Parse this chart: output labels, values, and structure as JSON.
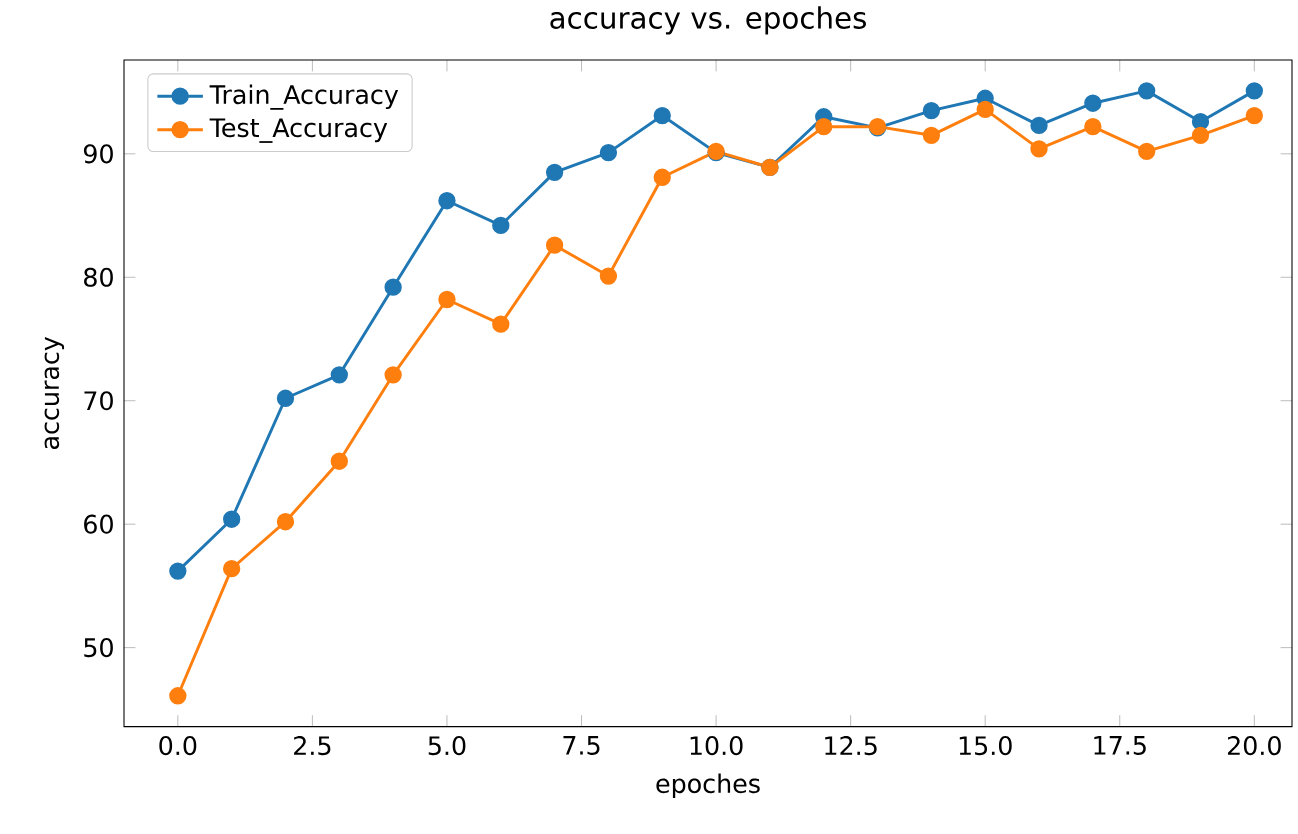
{
  "chart_data": {
    "type": "line",
    "title": "accuracy vs. epoches",
    "xlabel": "epoches",
    "ylabel": "accuracy",
    "x": [
      0,
      1,
      2,
      3,
      4,
      5,
      6,
      7,
      8,
      9,
      10,
      11,
      12,
      13,
      14,
      15,
      16,
      17,
      18,
      19,
      20
    ],
    "series": [
      {
        "name": "Train_Accuracy",
        "color": "#1f77b4",
        "values": [
          56.2,
          60.4,
          70.2,
          72.1,
          79.2,
          86.2,
          84.2,
          88.5,
          90.1,
          93.1,
          90.1,
          88.9,
          93.0,
          92.1,
          93.5,
          94.5,
          92.3,
          94.1,
          95.1,
          92.6,
          95.1
        ]
      },
      {
        "name": "Test_Accuracy",
        "color": "#ff7f0e",
        "values": [
          46.1,
          56.4,
          60.2,
          65.1,
          72.1,
          78.2,
          76.2,
          82.6,
          80.1,
          88.1,
          90.2,
          88.9,
          92.2,
          92.2,
          91.5,
          93.6,
          90.4,
          92.2,
          90.2,
          91.5,
          93.1
        ]
      }
    ],
    "xlim": [
      -1,
      20.7
    ],
    "ylim": [
      43.6,
      97.6
    ],
    "xticks": [
      {
        "value": 0,
        "label": "0.0"
      },
      {
        "value": 2.5,
        "label": "2.5"
      },
      {
        "value": 5,
        "label": "5.0"
      },
      {
        "value": 7.5,
        "label": "7.5"
      },
      {
        "value": 10,
        "label": "10.0"
      },
      {
        "value": 12.5,
        "label": "12.5"
      },
      {
        "value": 15,
        "label": "15.0"
      },
      {
        "value": 17.5,
        "label": "17.5"
      },
      {
        "value": 20,
        "label": "20.0"
      }
    ],
    "yticks": [
      50,
      60,
      70,
      80,
      90
    ],
    "legend": "top left",
    "marker": "circle",
    "line_style": "solid",
    "grid": false
  }
}
